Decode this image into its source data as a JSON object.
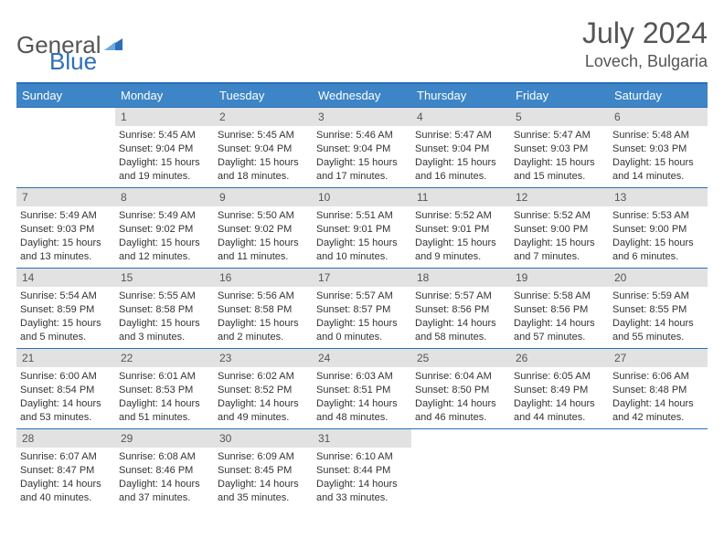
{
  "logo": {
    "text_general": "General",
    "text_blue": "Blue"
  },
  "title": "July 2024",
  "location": "Lovech, Bulgaria",
  "colors": {
    "header_bg": "#3d85c6",
    "header_text": "#ffffff",
    "border": "#2d6fb7",
    "daynum_bg": "#e2e2e2",
    "text": "#333333",
    "logo_blue": "#2d6fb7",
    "logo_gray": "#555555"
  },
  "day_headers": [
    "Sunday",
    "Monday",
    "Tuesday",
    "Wednesday",
    "Thursday",
    "Friday",
    "Saturday"
  ],
  "start_offset": 1,
  "days": [
    {
      "n": "1",
      "sunrise": "5:45 AM",
      "sunset": "9:04 PM",
      "daylight": "15 hours and 19 minutes."
    },
    {
      "n": "2",
      "sunrise": "5:45 AM",
      "sunset": "9:04 PM",
      "daylight": "15 hours and 18 minutes."
    },
    {
      "n": "3",
      "sunrise": "5:46 AM",
      "sunset": "9:04 PM",
      "daylight": "15 hours and 17 minutes."
    },
    {
      "n": "4",
      "sunrise": "5:47 AM",
      "sunset": "9:04 PM",
      "daylight": "15 hours and 16 minutes."
    },
    {
      "n": "5",
      "sunrise": "5:47 AM",
      "sunset": "9:03 PM",
      "daylight": "15 hours and 15 minutes."
    },
    {
      "n": "6",
      "sunrise": "5:48 AM",
      "sunset": "9:03 PM",
      "daylight": "15 hours and 14 minutes."
    },
    {
      "n": "7",
      "sunrise": "5:49 AM",
      "sunset": "9:03 PM",
      "daylight": "15 hours and 13 minutes."
    },
    {
      "n": "8",
      "sunrise": "5:49 AM",
      "sunset": "9:02 PM",
      "daylight": "15 hours and 12 minutes."
    },
    {
      "n": "9",
      "sunrise": "5:50 AM",
      "sunset": "9:02 PM",
      "daylight": "15 hours and 11 minutes."
    },
    {
      "n": "10",
      "sunrise": "5:51 AM",
      "sunset": "9:01 PM",
      "daylight": "15 hours and 10 minutes."
    },
    {
      "n": "11",
      "sunrise": "5:52 AM",
      "sunset": "9:01 PM",
      "daylight": "15 hours and 9 minutes."
    },
    {
      "n": "12",
      "sunrise": "5:52 AM",
      "sunset": "9:00 PM",
      "daylight": "15 hours and 7 minutes."
    },
    {
      "n": "13",
      "sunrise": "5:53 AM",
      "sunset": "9:00 PM",
      "daylight": "15 hours and 6 minutes."
    },
    {
      "n": "14",
      "sunrise": "5:54 AM",
      "sunset": "8:59 PM",
      "daylight": "15 hours and 5 minutes."
    },
    {
      "n": "15",
      "sunrise": "5:55 AM",
      "sunset": "8:58 PM",
      "daylight": "15 hours and 3 minutes."
    },
    {
      "n": "16",
      "sunrise": "5:56 AM",
      "sunset": "8:58 PM",
      "daylight": "15 hours and 2 minutes."
    },
    {
      "n": "17",
      "sunrise": "5:57 AM",
      "sunset": "8:57 PM",
      "daylight": "15 hours and 0 minutes."
    },
    {
      "n": "18",
      "sunrise": "5:57 AM",
      "sunset": "8:56 PM",
      "daylight": "14 hours and 58 minutes."
    },
    {
      "n": "19",
      "sunrise": "5:58 AM",
      "sunset": "8:56 PM",
      "daylight": "14 hours and 57 minutes."
    },
    {
      "n": "20",
      "sunrise": "5:59 AM",
      "sunset": "8:55 PM",
      "daylight": "14 hours and 55 minutes."
    },
    {
      "n": "21",
      "sunrise": "6:00 AM",
      "sunset": "8:54 PM",
      "daylight": "14 hours and 53 minutes."
    },
    {
      "n": "22",
      "sunrise": "6:01 AM",
      "sunset": "8:53 PM",
      "daylight": "14 hours and 51 minutes."
    },
    {
      "n": "23",
      "sunrise": "6:02 AM",
      "sunset": "8:52 PM",
      "daylight": "14 hours and 49 minutes."
    },
    {
      "n": "24",
      "sunrise": "6:03 AM",
      "sunset": "8:51 PM",
      "daylight": "14 hours and 48 minutes."
    },
    {
      "n": "25",
      "sunrise": "6:04 AM",
      "sunset": "8:50 PM",
      "daylight": "14 hours and 46 minutes."
    },
    {
      "n": "26",
      "sunrise": "6:05 AM",
      "sunset": "8:49 PM",
      "daylight": "14 hours and 44 minutes."
    },
    {
      "n": "27",
      "sunrise": "6:06 AM",
      "sunset": "8:48 PM",
      "daylight": "14 hours and 42 minutes."
    },
    {
      "n": "28",
      "sunrise": "6:07 AM",
      "sunset": "8:47 PM",
      "daylight": "14 hours and 40 minutes."
    },
    {
      "n": "29",
      "sunrise": "6:08 AM",
      "sunset": "8:46 PM",
      "daylight": "14 hours and 37 minutes."
    },
    {
      "n": "30",
      "sunrise": "6:09 AM",
      "sunset": "8:45 PM",
      "daylight": "14 hours and 35 minutes."
    },
    {
      "n": "31",
      "sunrise": "6:10 AM",
      "sunset": "8:44 PM",
      "daylight": "14 hours and 33 minutes."
    }
  ],
  "labels": {
    "sunrise": "Sunrise:",
    "sunset": "Sunset:",
    "daylight": "Daylight:"
  }
}
